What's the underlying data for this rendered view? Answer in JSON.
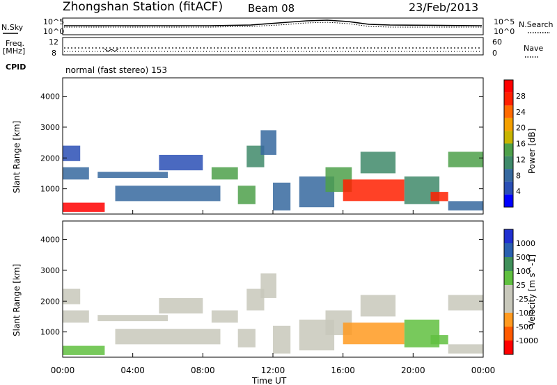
{
  "header": {
    "title_left": "Zhongshan Station (fitACF)",
    "title_beam": "Beam 08",
    "title_date": "23/Feb/2013"
  },
  "top_panels": {
    "nsky_label": "N.Sky",
    "nsearch_label": "N.Search",
    "sky_ticks_left": [
      "10^5",
      "10^0"
    ],
    "sky_ticks_right": [
      "10^5",
      "10^0"
    ],
    "freq_label": "Freq.",
    "freq_unit": "[MHz]",
    "freq_ticks": [
      "12",
      "8"
    ],
    "nave_label": "Nave",
    "nave_ticks": [
      "60",
      "0"
    ],
    "cpid_label": "CPID",
    "cpid_text": "normal (fast stereo) 153"
  },
  "axes": {
    "ylabel": "Slant Range [km]",
    "yticks": [
      "4000",
      "3000",
      "2000",
      "1000"
    ],
    "xlabel": "Time UT",
    "xticks": [
      "00:00",
      "04:00",
      "08:00",
      "12:00",
      "16:00",
      "20:00",
      "00:00"
    ]
  },
  "colorbars": {
    "power": {
      "label": "Power [dB]",
      "ticks": [
        "28",
        "24",
        "20",
        "16",
        "12",
        "8",
        "4"
      ],
      "colors": [
        "#0000ff",
        "#2a4fb5",
        "#36699f",
        "#3f8a6a",
        "#4ea04a",
        "#c8b400",
        "#f5a000",
        "#ff6a00",
        "#ff2000",
        "#ff0000"
      ]
    },
    "velocity": {
      "label": "Velocity [m s^-1]",
      "ticks": [
        "1000",
        "500",
        "100",
        "25",
        "-25",
        "-100",
        "-500",
        "-1000"
      ],
      "colors": [
        "#ff0000",
        "#ff5a00",
        "#ff9a20",
        "#c8c8bb",
        "#c8c8bb",
        "#60c040",
        "#40905a",
        "#2a60b0",
        "#2030d0"
      ]
    }
  },
  "chart_data": [
    {
      "type": "heatmap",
      "name": "power",
      "x_range_hours": [
        0,
        24
      ],
      "y_range_km": [
        180,
        4600
      ],
      "colorbar_range_db": [
        0,
        30
      ],
      "blobs": [
        {
          "t0": 0.0,
          "t1": 2.4,
          "r0": 250,
          "r1": 550,
          "v": 28
        },
        {
          "t0": 0.0,
          "t1": 1.5,
          "r0": 1300,
          "r1": 1700,
          "v": 6
        },
        {
          "t0": 0.0,
          "t1": 1.0,
          "r0": 1900,
          "r1": 2400,
          "v": 4
        },
        {
          "t0": 2.0,
          "t1": 6.0,
          "r0": 1350,
          "r1": 1550,
          "v": 6
        },
        {
          "t0": 3.0,
          "t1": 9.0,
          "r0": 600,
          "r1": 1100,
          "v": 8
        },
        {
          "t0": 5.5,
          "t1": 8.0,
          "r0": 1600,
          "r1": 2100,
          "v": 5
        },
        {
          "t0": 8.5,
          "t1": 10.0,
          "r0": 1300,
          "r1": 1700,
          "v": 14
        },
        {
          "t0": 10.0,
          "t1": 11.0,
          "r0": 500,
          "r1": 1100,
          "v": 14
        },
        {
          "t0": 10.5,
          "t1": 11.5,
          "r0": 1700,
          "r1": 2400,
          "v": 10
        },
        {
          "t0": 11.3,
          "t1": 12.2,
          "r0": 2100,
          "r1": 2900,
          "v": 6
        },
        {
          "t0": 12.0,
          "t1": 13.0,
          "r0": 300,
          "r1": 1200,
          "v": 8
        },
        {
          "t0": 13.5,
          "t1": 15.5,
          "r0": 400,
          "r1": 1400,
          "v": 6
        },
        {
          "t0": 15.0,
          "t1": 16.5,
          "r0": 900,
          "r1": 1700,
          "v": 12
        },
        {
          "t0": 16.0,
          "t1": 19.5,
          "r0": 600,
          "r1": 1300,
          "v": 25
        },
        {
          "t0": 17.0,
          "t1": 19.0,
          "r0": 1500,
          "r1": 2200,
          "v": 10
        },
        {
          "t0": 19.5,
          "t1": 21.5,
          "r0": 500,
          "r1": 1400,
          "v": 9
        },
        {
          "t0": 21.0,
          "t1": 22.0,
          "r0": 600,
          "r1": 900,
          "v": 26
        },
        {
          "t0": 22.0,
          "t1": 24.0,
          "r0": 1700,
          "r1": 2200,
          "v": 12
        },
        {
          "t0": 22.0,
          "t1": 24.0,
          "r0": 300,
          "r1": 600,
          "v": 7
        }
      ]
    },
    {
      "type": "heatmap",
      "name": "velocity",
      "x_range_hours": [
        0,
        24
      ],
      "y_range_km": [
        180,
        4600
      ],
      "colorbar_range_ms": [
        -1000,
        1000
      ],
      "blobs": [
        {
          "t0": 0.0,
          "t1": 2.4,
          "r0": 250,
          "r1": 550,
          "v": 120
        },
        {
          "t0": 0.0,
          "t1": 1.5,
          "r0": 1300,
          "r1": 1700,
          "v": 0
        },
        {
          "t0": 0.0,
          "t1": 1.0,
          "r0": 1900,
          "r1": 2400,
          "v": -10
        },
        {
          "t0": 2.0,
          "t1": 6.0,
          "r0": 1350,
          "r1": 1550,
          "v": 0
        },
        {
          "t0": 3.0,
          "t1": 9.0,
          "r0": 600,
          "r1": 1100,
          "v": -150
        },
        {
          "t0": 5.5,
          "t1": 8.0,
          "r0": 1600,
          "r1": 2100,
          "v": 0
        },
        {
          "t0": 8.5,
          "t1": 10.0,
          "r0": 1300,
          "r1": 1700,
          "v": 5
        },
        {
          "t0": 10.0,
          "t1": 11.0,
          "r0": 500,
          "r1": 1100,
          "v": -200
        },
        {
          "t0": 10.5,
          "t1": 11.5,
          "r0": 1700,
          "r1": 2400,
          "v": 0
        },
        {
          "t0": 11.3,
          "t1": 12.2,
          "r0": 2100,
          "r1": 2900,
          "v": 0
        },
        {
          "t0": 12.0,
          "t1": 13.0,
          "r0": 300,
          "r1": 1200,
          "v": -220
        },
        {
          "t0": 13.5,
          "t1": 15.5,
          "r0": 400,
          "r1": 1400,
          "v": -60
        },
        {
          "t0": 15.0,
          "t1": 16.5,
          "r0": 900,
          "r1": 1700,
          "v": -250
        },
        {
          "t0": 16.0,
          "t1": 19.5,
          "r0": 600,
          "r1": 1300,
          "v": -350
        },
        {
          "t0": 17.0,
          "t1": 19.0,
          "r0": 1500,
          "r1": 2200,
          "v": -80
        },
        {
          "t0": 19.5,
          "t1": 21.5,
          "r0": 500,
          "r1": 1400,
          "v": 200
        },
        {
          "t0": 21.0,
          "t1": 22.0,
          "r0": 600,
          "r1": 900,
          "v": 150
        },
        {
          "t0": 22.0,
          "t1": 24.0,
          "r0": 1700,
          "r1": 2200,
          "v": 0
        },
        {
          "t0": 22.0,
          "t1": 24.0,
          "r0": 300,
          "r1": 600,
          "v": 100
        }
      ]
    }
  ]
}
